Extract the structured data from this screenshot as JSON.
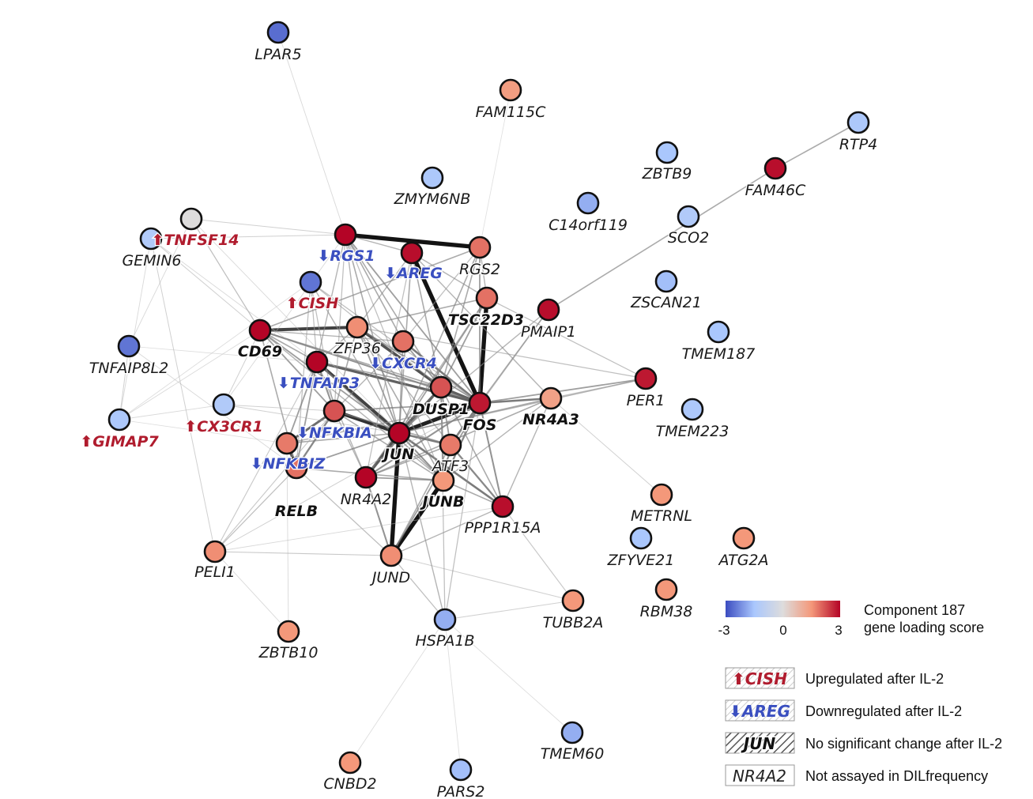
{
  "legend": {
    "colorbar": {
      "min_label": "-3",
      "mid_label": "0",
      "max_label": "3",
      "title_line1": "Component 187",
      "title_line2": "gene loading score",
      "colors": [
        "#3b4cc0",
        "#aac7fd",
        "#dddcdc",
        "#f4987a",
        "#b40426"
      ]
    },
    "items": [
      {
        "glyph": "⬆CISH",
        "text": "Upregulated after IL-2",
        "style": "up"
      },
      {
        "glyph": "⬇AREG",
        "text": "Downregulated after IL-2",
        "style": "down"
      },
      {
        "glyph": "JUN",
        "text": "No significant change after IL-2",
        "style": "bold"
      },
      {
        "glyph": "NR4A2",
        "text": "Not assayed in DILfrequency",
        "style": "plain"
      }
    ]
  },
  "nodes": [
    {
      "id": "LPAR5",
      "label": "LPAR5",
      "score": -2.6,
      "style": "plain"
    },
    {
      "id": "FAM115C",
      "label": "FAM115C",
      "score": 1.4,
      "style": "plain"
    },
    {
      "id": "RTP4",
      "label": "RTP4",
      "score": -1.4,
      "style": "plain"
    },
    {
      "id": "ZBTB9",
      "label": "ZBTB9",
      "score": -1.5,
      "style": "plain"
    },
    {
      "id": "FAM46C",
      "label": "FAM46C",
      "score": 2.9,
      "style": "plain"
    },
    {
      "id": "ZMYM6NB",
      "label": "ZMYM6NB",
      "score": -1.4,
      "style": "plain"
    },
    {
      "id": "C14orf119",
      "label": "C14orf119",
      "score": -1.8,
      "style": "plain"
    },
    {
      "id": "SCO2",
      "label": "SCO2",
      "score": -1.3,
      "style": "plain"
    },
    {
      "id": "TNFSF14",
      "label": "⬆TNFSF14",
      "score": -1.3,
      "style": "up"
    },
    {
      "id": "GEMIN6",
      "label": "GEMIN6",
      "score": 0.0,
      "style": "plain"
    },
    {
      "id": "RGS1",
      "label": "⬇RGS1",
      "score": 3.0,
      "style": "down"
    },
    {
      "id": "AREG",
      "label": "⬇AREG",
      "score": 2.9,
      "style": "down"
    },
    {
      "id": "RGS2",
      "label": "RGS2",
      "score": 1.9,
      "style": "plain"
    },
    {
      "id": "ZSCAN21",
      "label": "ZSCAN21",
      "score": -1.6,
      "style": "plain"
    },
    {
      "id": "CISH",
      "label": "⬆CISH",
      "score": -2.5,
      "style": "up"
    },
    {
      "id": "TSC22D3",
      "label": "TSC22D3",
      "score": 1.9,
      "style": "bold"
    },
    {
      "id": "PMAIP1",
      "label": "PMAIP1",
      "score": 2.9,
      "style": "plain"
    },
    {
      "id": "TMEM187",
      "label": "TMEM187",
      "score": -1.5,
      "style": "plain"
    },
    {
      "id": "TNFAIP8L2",
      "label": "TNFAIP8L2",
      "score": -2.5,
      "style": "plain"
    },
    {
      "id": "CD69",
      "label": "CD69",
      "score": 3.0,
      "style": "bold"
    },
    {
      "id": "ZFP36",
      "label": "ZFP36",
      "score": 1.6,
      "style": "plain"
    },
    {
      "id": "CXCR4",
      "label": "⬇CXCR4",
      "score": 1.9,
      "style": "down"
    },
    {
      "id": "TNFAIP3",
      "label": "⬇TNFAIP3",
      "score": 3.0,
      "style": "down"
    },
    {
      "id": "PER1",
      "label": "PER1",
      "score": 2.8,
      "style": "plain"
    },
    {
      "id": "TMEM223",
      "label": "TMEM223",
      "score": -1.4,
      "style": "plain"
    },
    {
      "id": "CX3CR1",
      "label": "⬆CX3CR1",
      "score": -1.3,
      "style": "up"
    },
    {
      "id": "GIMAP7",
      "label": "⬆GIMAP7",
      "score": -1.4,
      "style": "up"
    },
    {
      "id": "DUSP1",
      "label": "DUSP1",
      "score": 2.2,
      "style": "bold"
    },
    {
      "id": "FOS",
      "label": "FOS",
      "score": 2.8,
      "style": "bold"
    },
    {
      "id": "NR4A3",
      "label": "NR4A3",
      "score": 1.3,
      "style": "bold"
    },
    {
      "id": "NFKBIA",
      "label": "⬇NFKBIA",
      "score": 2.2,
      "style": "down"
    },
    {
      "id": "JUN",
      "label": "JUN",
      "score": 3.0,
      "style": "bold"
    },
    {
      "id": "NFKBIZ",
      "label": "⬇NFKBIZ",
      "score": 1.8,
      "style": "down"
    },
    {
      "id": "ATF3",
      "label": "ATF3",
      "score": 1.8,
      "style": "plain"
    },
    {
      "id": "RELB",
      "label": "RELB",
      "score": 1.9,
      "style": "bold"
    },
    {
      "id": "NR4A2",
      "label": "NR4A2",
      "score": 3.0,
      "style": "plain"
    },
    {
      "id": "JUNB",
      "label": "JUNB",
      "score": 1.5,
      "style": "bold"
    },
    {
      "id": "PPP1R15A",
      "label": "PPP1R15A",
      "score": 2.9,
      "style": "plain"
    },
    {
      "id": "METRNL",
      "label": "METRNL",
      "score": 1.5,
      "style": "plain"
    },
    {
      "id": "ZFYVE21",
      "label": "ZFYVE21",
      "score": -1.5,
      "style": "plain"
    },
    {
      "id": "ATG2A",
      "label": "ATG2A",
      "score": 1.5,
      "style": "plain"
    },
    {
      "id": "PELI1",
      "label": "PELI1",
      "score": 1.6,
      "style": "plain"
    },
    {
      "id": "JUND",
      "label": "JUND",
      "score": 1.6,
      "style": "plain"
    },
    {
      "id": "RBM38",
      "label": "RBM38",
      "score": 1.5,
      "style": "plain"
    },
    {
      "id": "TUBB2A",
      "label": "TUBB2A",
      "score": 1.5,
      "style": "plain"
    },
    {
      "id": "ZBTB10",
      "label": "ZBTB10",
      "score": 1.5,
      "style": "plain"
    },
    {
      "id": "HSPA1B",
      "label": "HSPA1B",
      "score": -1.8,
      "style": "plain"
    },
    {
      "id": "TMEM60",
      "label": "TMEM60",
      "score": -1.8,
      "style": "plain"
    },
    {
      "id": "CNBD2",
      "label": "CNBD2",
      "score": 1.5,
      "style": "plain"
    },
    {
      "id": "PARS2",
      "label": "PARS2",
      "score": -1.6,
      "style": "plain"
    }
  ],
  "edges": [
    {
      "a": "RGS1",
      "b": "RGS2",
      "w": 0.95
    },
    {
      "a": "AREG",
      "b": "FOS",
      "w": 0.95
    },
    {
      "a": "TSC22D3",
      "b": "FOS",
      "w": 0.95
    },
    {
      "a": "JUN",
      "b": "FOS",
      "w": 0.9
    },
    {
      "a": "JUN",
      "b": "JUND",
      "w": 0.95
    },
    {
      "a": "JUNB",
      "b": "JUND",
      "w": 0.95
    },
    {
      "a": "NFKBIA",
      "b": "JUN",
      "w": 0.85
    },
    {
      "a": "TNFAIP3",
      "b": "JUN",
      "w": 0.8
    },
    {
      "a": "CD69",
      "b": "ZFP36",
      "w": 0.8
    },
    {
      "a": "ZFP36",
      "b": "DUSP1",
      "w": 0.75
    },
    {
      "a": "CXCR4",
      "b": "FOS",
      "w": 0.6
    },
    {
      "a": "TNFAIP3",
      "b": "FOS",
      "w": 0.7
    },
    {
      "a": "NFKBIZ",
      "b": "RELB",
      "w": 0.7
    },
    {
      "a": "NFKBIA",
      "b": "NFKBIZ",
      "w": 0.65
    },
    {
      "a": "NR4A2",
      "b": "JUN",
      "w": 0.75
    },
    {
      "a": "FOS",
      "b": "NR4A3",
      "w": 0.6
    },
    {
      "a": "FOS",
      "b": "ATF3",
      "w": 0.6
    },
    {
      "a": "JUN",
      "b": "ATF3",
      "w": 0.6
    },
    {
      "a": "JUN",
      "b": "PPP1R15A",
      "w": 0.6
    },
    {
      "a": "ATF3",
      "b": "PPP1R15A",
      "w": 0.55
    },
    {
      "a": "DUSP1",
      "b": "JUN",
      "w": 0.7
    },
    {
      "a": "DUSP1",
      "b": "FOS",
      "w": 0.7
    },
    {
      "a": "DUSP1",
      "b": "NR4A2",
      "w": 0.55
    },
    {
      "a": "DUSP1",
      "b": "JUNB",
      "w": 0.5
    },
    {
      "a": "FOS",
      "b": "JUNB",
      "w": 0.55
    },
    {
      "a": "FOS",
      "b": "NR4A2",
      "w": 0.5
    },
    {
      "a": "CD69",
      "b": "FOS",
      "w": 0.5
    },
    {
      "a": "CD69",
      "b": "JUN",
      "w": 0.45
    },
    {
      "a": "CD69",
      "b": "RELB",
      "w": 0.4
    },
    {
      "a": "CD69",
      "b": "NFKBIA",
      "w": 0.45
    },
    {
      "a": "RGS1",
      "b": "FOS",
      "w": 0.45
    },
    {
      "a": "RGS1",
      "b": "JUN",
      "w": 0.4
    },
    {
      "a": "RGS1",
      "b": "DUSP1",
      "w": 0.4
    },
    {
      "a": "RGS1",
      "b": "CXCR4",
      "w": 0.4
    },
    {
      "a": "RGS2",
      "b": "FOS",
      "w": 0.45
    },
    {
      "a": "RGS2",
      "b": "JUN",
      "w": 0.4
    },
    {
      "a": "RGS2",
      "b": "DUSP1",
      "w": 0.4
    },
    {
      "a": "RGS2",
      "b": "CD69",
      "w": 0.4
    },
    {
      "a": "AREG",
      "b": "JUN",
      "w": 0.4
    },
    {
      "a": "AREG",
      "b": "DUSP1",
      "w": 0.4
    },
    {
      "a": "AREG",
      "b": "NR4A3",
      "w": 0.35
    },
    {
      "a": "CISH",
      "b": "JUN",
      "w": 0.35
    },
    {
      "a": "CISH",
      "b": "TNFAIP3",
      "w": 0.3
    },
    {
      "a": "CISH",
      "b": "NFKBIA",
      "w": 0.3
    },
    {
      "a": "CISH",
      "b": "RELB",
      "w": 0.3
    },
    {
      "a": "TSC22D3",
      "b": "JUN",
      "w": 0.45
    },
    {
      "a": "TSC22D3",
      "b": "DUSP1",
      "w": 0.45
    },
    {
      "a": "TSC22D3",
      "b": "ZFP36",
      "w": 0.4
    },
    {
      "a": "TSC22D3",
      "b": "NR4A2",
      "w": 0.35
    },
    {
      "a": "PMAIP1",
      "b": "FOS",
      "w": 0.4
    },
    {
      "a": "PMAIP1",
      "b": "JUN",
      "w": 0.35
    },
    {
      "a": "PMAIP1",
      "b": "FAM46C",
      "w": 0.4
    },
    {
      "a": "PMAIP1",
      "b": "ATF3",
      "w": 0.3
    },
    {
      "a": "FAM46C",
      "b": "RTP4",
      "w": 0.4
    },
    {
      "a": "PER1",
      "b": "FOS",
      "w": 0.45
    },
    {
      "a": "PER1",
      "b": "JUN",
      "w": 0.35
    },
    {
      "a": "PER1",
      "b": "TSC22D3",
      "w": 0.3
    },
    {
      "a": "PER1",
      "b": "NR4A3",
      "w": 0.3
    },
    {
      "a": "PER1",
      "b": "ZFP36",
      "w": 0.3
    },
    {
      "a": "NR4A3",
      "b": "JUN",
      "w": 0.4
    },
    {
      "a": "NR4A3",
      "b": "NR4A2",
      "w": 0.4
    },
    {
      "a": "NR4A3",
      "b": "PPP1R15A",
      "w": 0.35
    },
    {
      "a": "NR4A3",
      "b": "JUNB",
      "w": 0.35
    },
    {
      "a": "NR4A3",
      "b": "METRNL",
      "w": 0.2
    },
    {
      "a": "ZFP36",
      "b": "JUN",
      "w": 0.45
    },
    {
      "a": "ZFP36",
      "b": "FOS",
      "w": 0.45
    },
    {
      "a": "ZFP36",
      "b": "JUNB",
      "w": 0.4
    },
    {
      "a": "ZFP36",
      "b": "NFKBIA",
      "w": 0.4
    },
    {
      "a": "CXCR4",
      "b": "JUN",
      "w": 0.4
    },
    {
      "a": "CXCR4",
      "b": "DUSP1",
      "w": 0.45
    },
    {
      "a": "CXCR4",
      "b": "NFKBIA",
      "w": 0.35
    },
    {
      "a": "TNFAIP3",
      "b": "NFKBIA",
      "w": 0.5
    },
    {
      "a": "TNFAIP3",
      "b": "RELB",
      "w": 0.45
    },
    {
      "a": "TNFAIP3",
      "b": "NFKBIZ",
      "w": 0.45
    },
    {
      "a": "TNFAIP3",
      "b": "DUSP1",
      "w": 0.4
    },
    {
      "a": "NFKBIA",
      "b": "RELB",
      "w": 0.55
    },
    {
      "a": "NFKBIA",
      "b": "FOS",
      "w": 0.45
    },
    {
      "a": "NFKBIA",
      "b": "ATF3",
      "w": 0.4
    },
    {
      "a": "NFKBIA",
      "b": "JUNB",
      "w": 0.4
    },
    {
      "a": "NFKBIA",
      "b": "NR4A2",
      "w": 0.35
    },
    {
      "a": "NFKBIZ",
      "b": "JUN",
      "w": 0.4
    },
    {
      "a": "NFKBIZ",
      "b": "FOS",
      "w": 0.35
    },
    {
      "a": "RELB",
      "b": "JUN",
      "w": 0.45
    },
    {
      "a": "RELB",
      "b": "JUNB",
      "w": 0.4
    },
    {
      "a": "RELB",
      "b": "PELI1",
      "w": 0.3
    },
    {
      "a": "RELB",
      "b": "JUND",
      "w": 0.3
    },
    {
      "a": "NR4A2",
      "b": "JUNB",
      "w": 0.45
    },
    {
      "a": "NR4A2",
      "b": "JUND",
      "w": 0.5
    },
    {
      "a": "NR4A2",
      "b": "ATF3",
      "w": 0.4
    },
    {
      "a": "JUNB",
      "b": "JUN",
      "w": 0.5
    },
    {
      "a": "JUNB",
      "b": "PPP1R15A",
      "w": 0.4
    },
    {
      "a": "JUNB",
      "b": "ATF3",
      "w": 0.45
    },
    {
      "a": "JUND",
      "b": "FOS",
      "w": 0.45
    },
    {
      "a": "JUND",
      "b": "ATF3",
      "w": 0.4
    },
    {
      "a": "JUND",
      "b": "PPP1R15A",
      "w": 0.35
    },
    {
      "a": "JUND",
      "b": "PELI1",
      "w": 0.25
    },
    {
      "a": "JUND",
      "b": "HSPA1B",
      "w": 0.3
    },
    {
      "a": "JUND",
      "b": "TUBB2A",
      "w": 0.2
    },
    {
      "a": "HSPA1B",
      "b": "JUN",
      "w": 0.35
    },
    {
      "a": "HSPA1B",
      "b": "FOS",
      "w": 0.3
    },
    {
      "a": "HSPA1B",
      "b": "DUSP1",
      "w": 0.3
    },
    {
      "a": "HSPA1B",
      "b": "TUBB2A",
      "w": 0.2
    },
    {
      "a": "HSPA1B",
      "b": "CNBD2",
      "w": 0.12
    },
    {
      "a": "HSPA1B",
      "b": "PARS2",
      "w": 0.12
    },
    {
      "a": "HSPA1B",
      "b": "TMEM60",
      "w": 0.12
    },
    {
      "a": "PPP1R15A",
      "b": "FOS",
      "w": 0.5
    },
    {
      "a": "PPP1R15A",
      "b": "TUBB2A",
      "w": 0.25
    },
    {
      "a": "PPP1R15A",
      "b": "DUSP1",
      "w": 0.4
    },
    {
      "a": "ATF3",
      "b": "DUSP1",
      "w": 0.45
    },
    {
      "a": "PELI1",
      "b": "FOS",
      "w": 0.2
    },
    {
      "a": "PELI1",
      "b": "ZBTB10",
      "w": 0.15
    },
    {
      "a": "PELI1",
      "b": "NFKBIA",
      "w": 0.25
    },
    {
      "a": "PELI1",
      "b": "TNFAIP3",
      "w": 0.25
    },
    {
      "a": "PELI1",
      "b": "PPP1R15A",
      "w": 0.15
    },
    {
      "a": "ZBTB10",
      "b": "NFKBIZ",
      "w": 0.15
    },
    {
      "a": "CX3CR1",
      "b": "JUN",
      "w": 0.2
    },
    {
      "a": "CX3CR1",
      "b": "NFKBIA",
      "w": 0.2
    },
    {
      "a": "CX3CR1",
      "b": "RGS1",
      "w": 0.15
    },
    {
      "a": "CX3CR1",
      "b": "CD69",
      "w": 0.2
    },
    {
      "a": "CX3CR1",
      "b": "GIMAP7",
      "w": 0.15
    },
    {
      "a": "GIMAP7",
      "b": "TNFAIP8L2",
      "w": 0.2
    },
    {
      "a": "GIMAP7",
      "b": "CD69",
      "w": 0.15
    },
    {
      "a": "GIMAP7",
      "b": "NFKBIZ",
      "w": 0.12
    },
    {
      "a": "GIMAP7",
      "b": "TNFSF14",
      "w": 0.15
    },
    {
      "a": "GIMAP7",
      "b": "CISH",
      "w": 0.12
    },
    {
      "a": "TNFAIP8L2",
      "b": "RELB",
      "w": 0.15
    },
    {
      "a": "TNFAIP8L2",
      "b": "TNFAIP3",
      "w": 0.12
    },
    {
      "a": "TNFAIP8L2",
      "b": "GEMIN6",
      "w": 0.15
    },
    {
      "a": "GEMIN6",
      "b": "CD69",
      "w": 0.3
    },
    {
      "a": "GEMIN6",
      "b": "RGS1",
      "w": 0.2
    },
    {
      "a": "GEMIN6",
      "b": "JUN",
      "w": 0.15
    },
    {
      "a": "TNFSF14",
      "b": "RGS1",
      "w": 0.2
    },
    {
      "a": "TNFSF14",
      "b": "PELI1",
      "w": 0.2
    },
    {
      "a": "TNFSF14",
      "b": "TNFAIP3",
      "w": 0.15
    },
    {
      "a": "TNFSF14",
      "b": "CD69",
      "w": 0.2
    },
    {
      "a": "LPAR5",
      "b": "RGS1",
      "w": 0.15
    },
    {
      "a": "FAM115C",
      "b": "RGS2",
      "w": 0.1
    },
    {
      "a": "RGS1",
      "b": "AREG",
      "w": 0.35
    },
    {
      "a": "RGS1",
      "b": "ZFP36",
      "w": 0.35
    },
    {
      "a": "RGS1",
      "b": "TNFAIP3",
      "w": 0.35
    },
    {
      "a": "RGS1",
      "b": "NFKBIA",
      "w": 0.3
    },
    {
      "a": "RGS1",
      "b": "JUNB",
      "w": 0.3
    },
    {
      "a": "AREG",
      "b": "ZFP36",
      "w": 0.35
    },
    {
      "a": "AREG",
      "b": "NR4A2",
      "w": 0.3
    },
    {
      "a": "AREG",
      "b": "TSC22D3",
      "w": 0.35
    },
    {
      "a": "RGS2",
      "b": "TSC22D3",
      "w": 0.35
    },
    {
      "a": "RGS2",
      "b": "CXCR4",
      "w": 0.3
    },
    {
      "a": "CD69",
      "b": "TNFAIP3",
      "w": 0.4
    },
    {
      "a": "CD69",
      "b": "DUSP1",
      "w": 0.4
    },
    {
      "a": "CD69",
      "b": "CXCR4",
      "w": 0.35
    },
    {
      "a": "CD69",
      "b": "JUNB",
      "w": 0.35
    },
    {
      "a": "CISH",
      "b": "FOS",
      "w": 0.3
    },
    {
      "a": "CISH",
      "b": "DUSP1",
      "w": 0.3
    },
    {
      "a": "ZFP36",
      "b": "ATF3",
      "w": 0.35
    },
    {
      "a": "ZFP36",
      "b": "TNFAIP3",
      "w": 0.35
    },
    {
      "a": "TNFAIP3",
      "b": "JUNB",
      "w": 0.4
    },
    {
      "a": "TNFAIP3",
      "b": "NR4A2",
      "w": 0.35
    }
  ]
}
